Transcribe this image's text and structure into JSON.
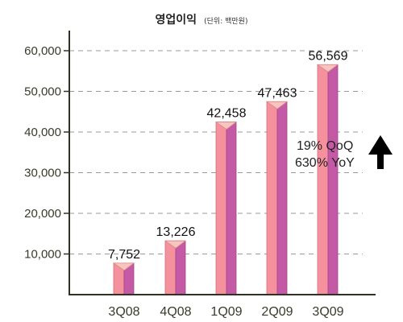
{
  "header": {
    "title": "영업이익",
    "unit_note": "(단위: 백만원)"
  },
  "chart_data": {
    "type": "bar",
    "title": "영업이익",
    "subtitle": "(단위: 백만원)",
    "categories": [
      "3Q08",
      "4Q08",
      "1Q09",
      "2Q09",
      "3Q09"
    ],
    "values": [
      7752,
      13226,
      42458,
      47463,
      56569
    ],
    "data_labels": [
      "7,752",
      "13,226",
      "42,458",
      "47,463",
      "56,569"
    ],
    "ylim": [
      0,
      60000
    ],
    "yticks": [
      10000,
      20000,
      30000,
      40000,
      50000,
      60000
    ],
    "ytick_labels": [
      "10,000",
      "20,000",
      "30,000",
      "40,000",
      "50,000",
      "60,000"
    ],
    "grid": "horizontal dashed",
    "annotations": {
      "growth_qoq": "19% QoQ",
      "growth_yoy": "630% YoY",
      "arrow": "up-arrow-icon"
    },
    "colors": {
      "bar_front": "#f4919d",
      "bar_side": "#c45aa5",
      "bar_top": "#f8c4bf",
      "axis": "#2f3222",
      "grid": "#9a9a9a",
      "arrow": "#000000"
    }
  }
}
